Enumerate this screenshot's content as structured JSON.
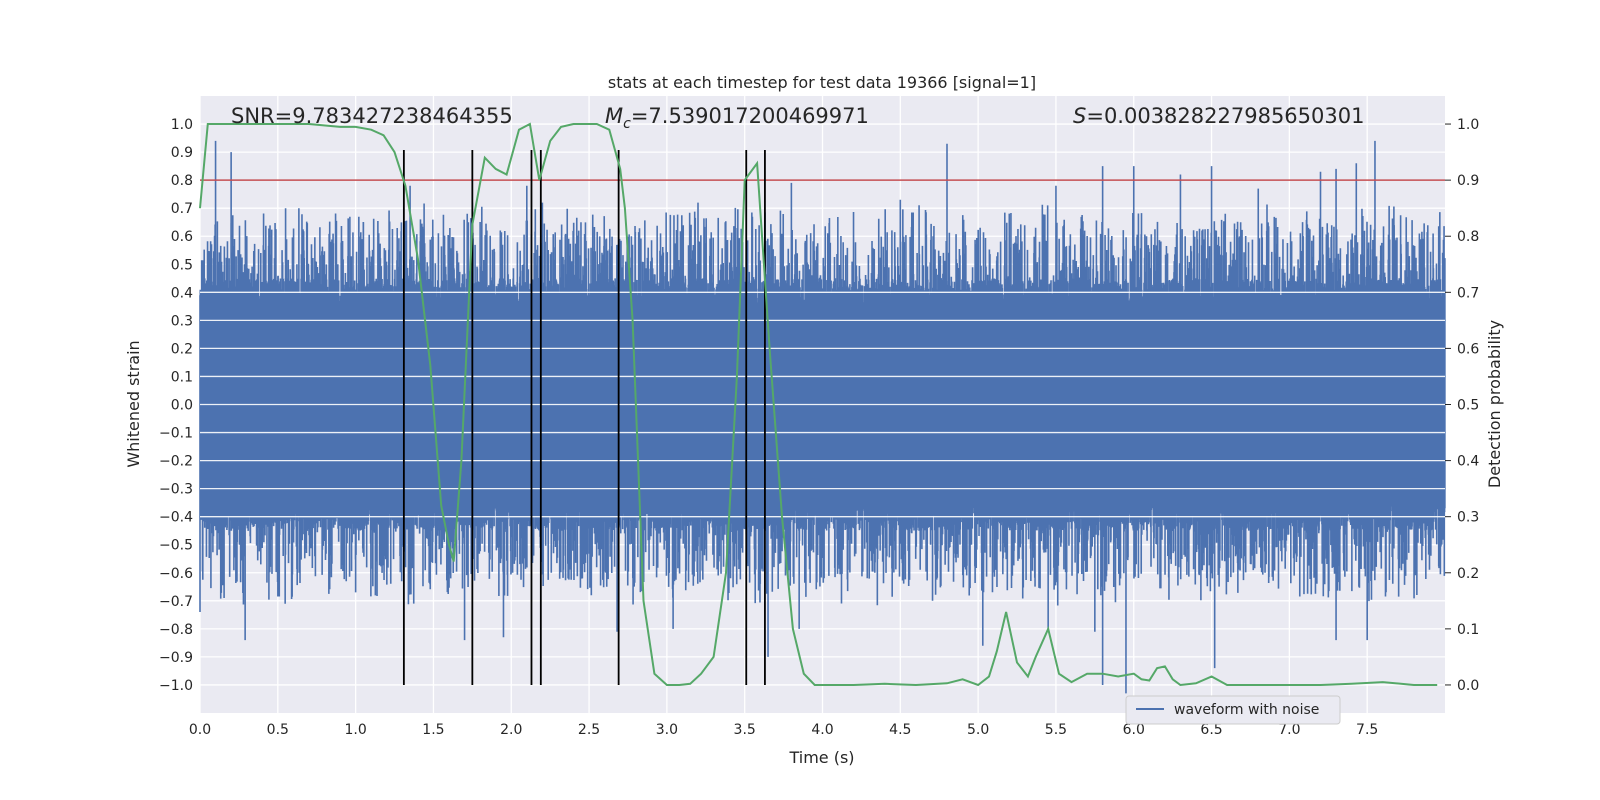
{
  "chart_data": {
    "type": "line",
    "title": "stats at each timestep for test data 19366 [signal=1]",
    "xlabel": "Time (s)",
    "ylabel": "Whitened strain",
    "y2label": "Detection probability",
    "xlim": [
      0.0,
      8.0
    ],
    "ylim": [
      -1.1,
      1.1
    ],
    "y2lim": [
      -0.05,
      1.05
    ],
    "xticks": [
      0.0,
      0.5,
      1.0,
      1.5,
      2.0,
      2.5,
      3.0,
      3.5,
      4.0,
      4.5,
      5.0,
      5.5,
      6.0,
      6.5,
      7.0,
      7.5
    ],
    "yticks": [
      -1.0,
      -0.9,
      -0.8,
      -0.7,
      -0.6,
      -0.5,
      -0.4,
      -0.3,
      -0.2,
      -0.1,
      0.0,
      0.1,
      0.2,
      0.3,
      0.4,
      0.5,
      0.6,
      0.7,
      0.8,
      0.9,
      1.0
    ],
    "y2ticks": [
      0.0,
      0.1,
      0.2,
      0.3,
      0.4,
      0.5,
      0.6,
      0.7,
      0.8,
      0.9,
      1.0
    ],
    "annotations": {
      "snr": "SNR=9.783427238464355",
      "mc_symbol": "M",
      "mc_subscript": "c",
      "mc_value": "=7.539017200469971",
      "s_symbol": "S",
      "s_value": "=0.003828227985650301"
    },
    "legend": {
      "position": "bottom-center",
      "entries": [
        "waveform with noise"
      ]
    },
    "series": [
      {
        "name": "waveform with noise",
        "axis": "left",
        "color": "#4c72b0",
        "envelope": {
          "core_low": -0.33,
          "core_high": 0.33,
          "typical_peak": 0.6
        },
        "peaks_pos": [
          [
            0.1,
            0.94
          ],
          [
            0.2,
            0.9
          ],
          [
            0.55,
            0.7
          ],
          [
            1.05,
            0.65
          ],
          [
            1.35,
            0.78
          ],
          [
            1.6,
            0.6
          ],
          [
            1.75,
            0.72
          ],
          [
            2.1,
            0.78
          ],
          [
            2.2,
            0.72
          ],
          [
            3.2,
            0.72
          ],
          [
            3.8,
            0.79
          ],
          [
            4.5,
            0.73
          ],
          [
            4.8,
            0.93
          ],
          [
            5.5,
            0.78
          ],
          [
            5.8,
            0.85
          ],
          [
            6.0,
            0.85
          ],
          [
            6.3,
            0.82
          ],
          [
            6.5,
            0.85
          ],
          [
            6.8,
            0.77
          ],
          [
            7.2,
            0.83
          ],
          [
            7.3,
            0.84
          ],
          [
            7.43,
            0.86
          ],
          [
            7.55,
            0.94
          ]
        ],
        "peaks_neg": [
          [
            0.0,
            -0.74
          ],
          [
            0.29,
            -0.84
          ],
          [
            1.0,
            -0.67
          ],
          [
            1.7,
            -0.84
          ],
          [
            1.95,
            -0.83
          ],
          [
            2.68,
            -0.81
          ],
          [
            3.04,
            -0.8
          ],
          [
            3.65,
            -0.9
          ],
          [
            3.85,
            -0.8
          ],
          [
            5.03,
            -0.86
          ],
          [
            5.45,
            -0.8
          ],
          [
            5.75,
            -0.81
          ],
          [
            5.8,
            -1.0
          ],
          [
            5.95,
            -1.03
          ],
          [
            6.52,
            -0.94
          ],
          [
            7.3,
            -0.84
          ],
          [
            7.5,
            -0.84
          ]
        ]
      },
      {
        "name": "detection probability",
        "axis": "right",
        "color": "#55a868",
        "x": [
          0.0,
          0.05,
          0.1,
          0.2,
          0.3,
          0.5,
          0.7,
          0.9,
          1.0,
          1.1,
          1.18,
          1.25,
          1.32,
          1.4,
          1.48,
          1.55,
          1.6,
          1.63,
          1.68,
          1.75,
          1.83,
          1.9,
          1.97,
          2.05,
          2.12,
          2.18,
          2.25,
          2.32,
          2.4,
          2.5,
          2.55,
          2.63,
          2.7,
          2.73,
          2.78,
          2.85,
          2.92,
          3.0,
          3.08,
          3.15,
          3.22,
          3.3,
          3.38,
          3.45,
          3.5,
          3.58,
          3.66,
          3.74,
          3.81,
          3.88,
          3.95,
          4.05,
          4.2,
          4.4,
          4.6,
          4.8,
          4.9,
          5.0,
          5.07,
          5.12,
          5.18,
          5.25,
          5.32,
          5.37,
          5.45,
          5.52,
          5.6,
          5.7,
          5.8,
          5.9,
          6.0,
          6.05,
          6.1,
          6.15,
          6.2,
          6.25,
          6.3,
          6.4,
          6.5,
          6.6,
          6.8,
          7.0,
          7.2,
          7.4,
          7.6,
          7.8,
          7.95
        ],
        "y": [
          0.85,
          1.0,
          1.0,
          1.0,
          1.0,
          1.0,
          1.0,
          0.995,
          0.995,
          0.99,
          0.98,
          0.95,
          0.89,
          0.76,
          0.57,
          0.32,
          0.25,
          0.22,
          0.4,
          0.82,
          0.94,
          0.92,
          0.91,
          0.99,
          1.0,
          0.9,
          0.97,
          0.995,
          1.0,
          1.0,
          1.0,
          0.99,
          0.92,
          0.85,
          0.65,
          0.15,
          0.02,
          0.0,
          0.0,
          0.002,
          0.02,
          0.05,
          0.2,
          0.55,
          0.9,
          0.93,
          0.6,
          0.3,
          0.1,
          0.02,
          0.0,
          0.0,
          0.0,
          0.002,
          0.0,
          0.003,
          0.01,
          0.0,
          0.015,
          0.06,
          0.13,
          0.04,
          0.015,
          0.05,
          0.1,
          0.02,
          0.005,
          0.02,
          0.02,
          0.015,
          0.02,
          0.01,
          0.008,
          0.03,
          0.033,
          0.01,
          0.0,
          0.003,
          0.015,
          0.0,
          0.0,
          0.0,
          0.0,
          0.002,
          0.005,
          0.0,
          0.0
        ]
      }
    ],
    "threshold": {
      "axis": "right",
      "value": 0.9,
      "color": "#c44e52"
    },
    "vlines": [
      1.31,
      1.75,
      2.13,
      2.19,
      2.69,
      3.51,
      3.63
    ]
  }
}
